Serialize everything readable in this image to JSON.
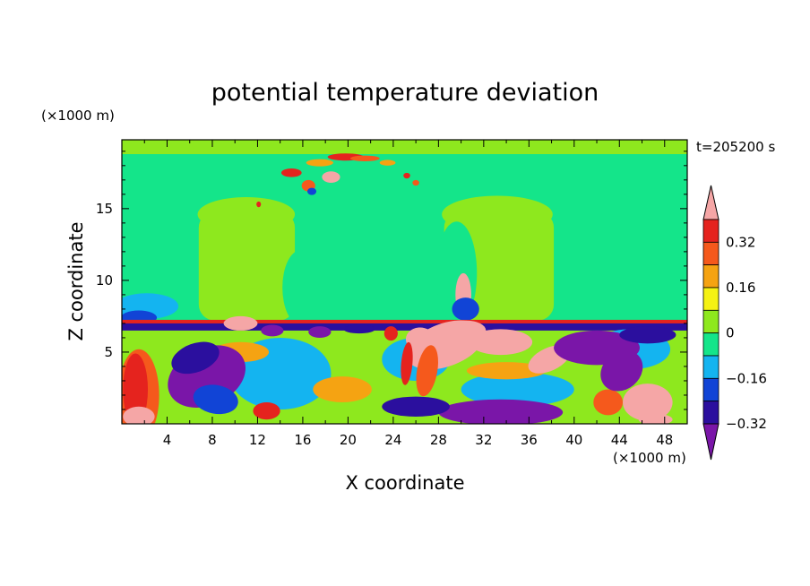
{
  "chart_data": {
    "type": "heatmap",
    "title": "potential temperature deviation",
    "xlabel": "X coordinate",
    "ylabel": "Z coordinate",
    "x_unit": "(×1000 m)",
    "y_unit": "(×1000 m)",
    "time_label": "t=205200 s",
    "xlim": [
      0,
      50
    ],
    "ylim": [
      0,
      19.8
    ],
    "x_ticks": [
      4,
      8,
      12,
      16,
      20,
      24,
      28,
      32,
      36,
      40,
      44,
      48
    ],
    "y_ticks": [
      5,
      10,
      15
    ],
    "colorbar": {
      "levels": [
        -0.4,
        -0.32,
        -0.24,
        -0.16,
        -0.08,
        0,
        0.08,
        0.16,
        0.24,
        0.32,
        0.4
      ],
      "labeled_values": [
        "0.32",
        "0.16",
        "0",
        "−0.16",
        "−0.32"
      ],
      "colors": [
        "#7a16a8",
        "#2b0f9e",
        "#1144d6",
        "#14b4f0",
        "#14e58a",
        "#8ee81e",
        "#f5f213",
        "#f5a312",
        "#f5591c",
        "#e5231e",
        "#f5a6a6"
      ]
    },
    "regions": [
      {
        "kind": "band",
        "z_range": [
          18.8,
          19.8
        ],
        "value": 0.04
      },
      {
        "kind": "band",
        "z_range": [
          7.2,
          18.8
        ],
        "value": -0.04
      },
      {
        "kind": "blob",
        "x_range": [
          5.5,
          15.5
        ],
        "z_range": [
          7.2,
          15.5
        ],
        "value": 0.04
      },
      {
        "kind": "blob",
        "x_range": [
          28,
          38.5
        ],
        "z_range": [
          7.2,
          15.5
        ],
        "value": 0.04
      },
      {
        "kind": "blob",
        "x_range": [
          13.5,
          24
        ],
        "z_range": [
          16,
          19
        ],
        "value": 0.36
      },
      {
        "kind": "layer",
        "z_range": [
          6.5,
          7.2
        ],
        "value": -0.36
      },
      {
        "kind": "layer",
        "z_range": [
          0,
          6.5
        ],
        "value": 0.04
      },
      {
        "kind": "blob",
        "x_range": [
          3,
          10
        ],
        "z_range": [
          1,
          5
        ],
        "value": -0.38
      },
      {
        "kind": "blob",
        "x_range": [
          28.5,
          38
        ],
        "z_range": [
          4.5,
          7
        ],
        "value": 0.38
      },
      {
        "kind": "blob",
        "x_range": [
          37.5,
          47
        ],
        "z_range": [
          3,
          7
        ],
        "value": -0.36
      },
      {
        "kind": "blob",
        "x_range": [
          28,
          40
        ],
        "z_range": [
          0,
          2
        ],
        "value": -0.36
      },
      {
        "kind": "blob",
        "x_range": [
          0,
          3
        ],
        "z_range": [
          0,
          5
        ],
        "value": 0.3
      },
      {
        "kind": "blob",
        "x_range": [
          43,
          50
        ],
        "z_range": [
          0.5,
          3
        ],
        "value": 0.38
      }
    ]
  }
}
